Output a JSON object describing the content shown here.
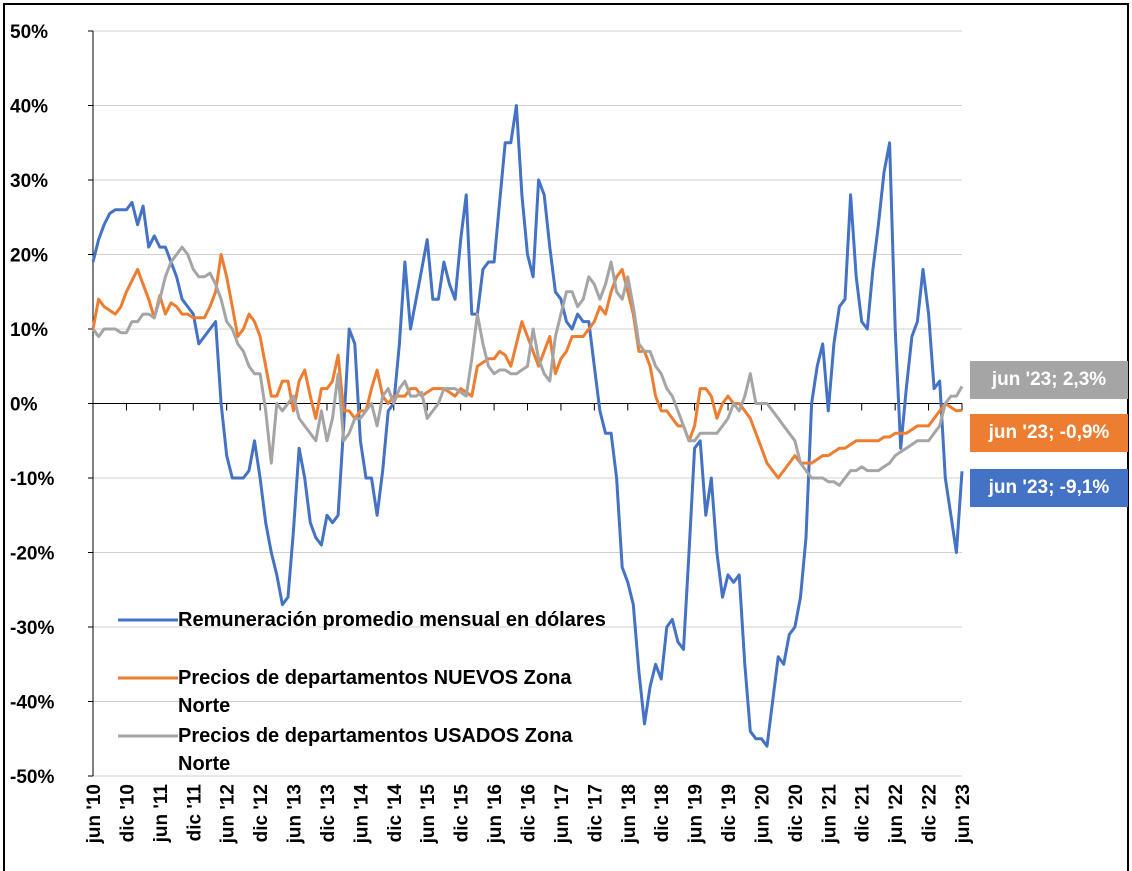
{
  "chart_data": {
    "type": "line",
    "categories": [
      "jun '10",
      null,
      null,
      null,
      null,
      null,
      "dic '10",
      null,
      null,
      null,
      null,
      null,
      "jun '11",
      null,
      null,
      null,
      null,
      null,
      "dic '11",
      null,
      null,
      null,
      null,
      null,
      "jun '12",
      null,
      null,
      null,
      null,
      null,
      "dic '12",
      null,
      null,
      null,
      null,
      null,
      "jun '13",
      null,
      null,
      null,
      null,
      null,
      "dic '13",
      null,
      null,
      null,
      null,
      null,
      "jun '14",
      null,
      null,
      null,
      null,
      null,
      "dic '14",
      null,
      null,
      null,
      null,
      null,
      "jun '15",
      null,
      null,
      null,
      null,
      null,
      "dic '15",
      null,
      null,
      null,
      null,
      null,
      "jun '16",
      null,
      null,
      null,
      null,
      null,
      "dic '16",
      null,
      null,
      null,
      null,
      null,
      "jun '17",
      null,
      null,
      null,
      null,
      null,
      "dic '17",
      null,
      null,
      null,
      null,
      null,
      "jun '18",
      null,
      null,
      null,
      null,
      null,
      "dic '18",
      null,
      null,
      null,
      null,
      null,
      "jun '19",
      null,
      null,
      null,
      null,
      null,
      "dic '19",
      null,
      null,
      null,
      null,
      null,
      "jun '20",
      null,
      null,
      null,
      null,
      null,
      "dic '20",
      null,
      null,
      null,
      null,
      null,
      "jun '21",
      null,
      null,
      null,
      null,
      null,
      "dic '21",
      null,
      null,
      null,
      null,
      null,
      "jun '22",
      null,
      null,
      null,
      null,
      null,
      "dic '22",
      null,
      null,
      null,
      null,
      null,
      "jun '23"
    ],
    "series": [
      {
        "name": "Remuneración promedio mensual en dólares",
        "color": "#4472c4",
        "end_label": "jun '23; -9,1%",
        "values": [
          19,
          22,
          24,
          25.5,
          26,
          26,
          26,
          27,
          24,
          26.5,
          21,
          22.5,
          21,
          21,
          19,
          17,
          14,
          13,
          12,
          8,
          9,
          10,
          11,
          0,
          -7,
          -10,
          -10,
          -10,
          -9,
          -5,
          -10,
          -16,
          -20,
          -23,
          -27,
          -26,
          -17,
          -6,
          -10,
          -16,
          -18,
          -19,
          -15,
          -16,
          -15,
          -3,
          10,
          8,
          -5,
          -10,
          -10,
          -15,
          -9,
          -1,
          0,
          8,
          19,
          10,
          14,
          18,
          22,
          14,
          14,
          19,
          16,
          14,
          22,
          28,
          12,
          12,
          18,
          19,
          19,
          27,
          35,
          35,
          40,
          28,
          20,
          17,
          30,
          28,
          21,
          15,
          14,
          11,
          10,
          12,
          11,
          11,
          5,
          -1,
          -4,
          -4,
          -10,
          -22,
          -24,
          -27,
          -36,
          -43,
          -38,
          -35,
          -37,
          -30,
          -29,
          -32,
          -33,
          -20,
          -6,
          -5,
          -15,
          -10,
          -20,
          -26,
          -23,
          -24,
          -23,
          -35,
          -44,
          -45,
          -45,
          -46,
          -40,
          -34,
          -35,
          -31,
          -30,
          -26,
          -18,
          0,
          5,
          8,
          -1,
          8,
          13,
          14,
          28,
          17,
          11,
          10,
          18,
          24,
          31,
          35,
          10,
          -6,
          2,
          9,
          11,
          18,
          12,
          2,
          3,
          -10,
          -15,
          -20,
          -9.1
        ]
      },
      {
        "name": "Precios de departamentos NUEVOS Zona Norte",
        "color": "#ed7d31",
        "end_label": "jun '23; -0,9%",
        "values": [
          10,
          14,
          13,
          12.5,
          12,
          13,
          15,
          16.5,
          18,
          16,
          14,
          11.5,
          14.5,
          12,
          13.5,
          13,
          12,
          12,
          11.5,
          11.5,
          11.5,
          13,
          15,
          20,
          17,
          13,
          9,
          10,
          12,
          11,
          9,
          5,
          1,
          1,
          3,
          3,
          -1,
          3,
          4.5,
          1,
          -2,
          2,
          2,
          3,
          6.5,
          -1,
          -1,
          -2,
          -1,
          -1,
          2,
          4.5,
          1,
          0,
          1,
          1,
          1,
          2,
          2,
          1,
          1.5,
          2,
          2,
          2,
          1.5,
          1,
          2,
          1.5,
          1,
          5,
          5.5,
          6,
          6,
          7,
          6.5,
          5,
          8,
          11,
          9,
          7,
          5,
          7,
          9,
          4,
          6,
          7,
          9,
          9,
          9,
          10,
          11,
          13,
          12,
          15,
          17,
          18,
          15,
          12,
          7,
          7,
          5,
          1,
          -1,
          -1,
          -2,
          -3,
          -3,
          -5,
          -3,
          2,
          2,
          1,
          -2,
          0,
          1,
          0,
          0,
          -1,
          -2,
          -4,
          -6,
          -8,
          -9,
          -10,
          -9,
          -8,
          -7,
          -8,
          -8,
          -8,
          -7.5,
          -7,
          -7,
          -6.5,
          -6,
          -6,
          -5.5,
          -5,
          -5,
          -5,
          -5,
          -5,
          -4.5,
          -4.5,
          -4,
          -4,
          -4,
          -3.5,
          -3,
          -3,
          -3,
          -2,
          -1,
          0,
          -0.5,
          -1,
          -0.9
        ]
      },
      {
        "name": "Precios de departamentos USADOS Zona Norte",
        "color": "#a5a5a5",
        "end_label": "jun '23; 2,3%",
        "values": [
          10,
          9,
          10,
          10,
          10,
          9.5,
          9.5,
          11,
          11,
          12,
          12,
          11.5,
          14,
          17,
          19,
          20,
          21,
          20,
          18,
          17,
          17,
          17.5,
          16,
          14,
          11,
          10,
          8,
          7,
          5,
          4,
          4,
          -1,
          -8,
          0,
          -1,
          0,
          1,
          -2,
          -3,
          -4,
          -5,
          -1,
          -5,
          -2,
          4,
          -5,
          -4,
          -2,
          -2,
          -1,
          0,
          -3,
          1,
          2,
          0,
          2,
          3,
          1,
          1,
          1.5,
          -2,
          -1,
          0,
          2,
          2,
          2,
          1.5,
          1,
          6,
          12,
          8,
          5,
          4,
          4.5,
          4.5,
          4,
          4,
          4.5,
          5,
          10,
          6,
          4,
          3,
          9,
          12,
          15,
          15,
          13,
          14,
          17,
          16,
          14,
          16,
          19,
          15,
          14,
          17,
          13,
          8,
          7,
          7,
          5,
          4,
          2,
          1,
          -1,
          -3,
          -5,
          -5,
          -4,
          -4,
          -4,
          -4,
          -3,
          -2,
          0,
          -1,
          1,
          4,
          0,
          0,
          0,
          -1,
          -2,
          -3,
          -4,
          -5,
          -8,
          -9,
          -10,
          -10,
          -10,
          -10.5,
          -10.5,
          -11,
          -10,
          -9,
          -9,
          -8.5,
          -9,
          -9,
          -9,
          -8.5,
          -8,
          -7,
          -6.5,
          -6,
          -5.5,
          -5,
          -5,
          -5,
          -4,
          -3,
          0,
          1,
          1,
          2.3
        ]
      }
    ],
    "ylim": [
      -50,
      50
    ],
    "yticks": [
      {
        "value": 50,
        "label": "50%"
      },
      {
        "value": 40,
        "label": "40%"
      },
      {
        "value": 30,
        "label": "30%"
      },
      {
        "value": 20,
        "label": "20%"
      },
      {
        "value": 10,
        "label": "10%"
      },
      {
        "value": 0,
        "label": "0%"
      },
      {
        "value": -10,
        "label": "-10%"
      },
      {
        "value": -20,
        "label": "-20%"
      },
      {
        "value": -30,
        "label": "-30%"
      },
      {
        "value": -40,
        "label": "-40%"
      },
      {
        "value": -50,
        "label": "-50%"
      }
    ],
    "grid": true,
    "legend": "lower left"
  }
}
